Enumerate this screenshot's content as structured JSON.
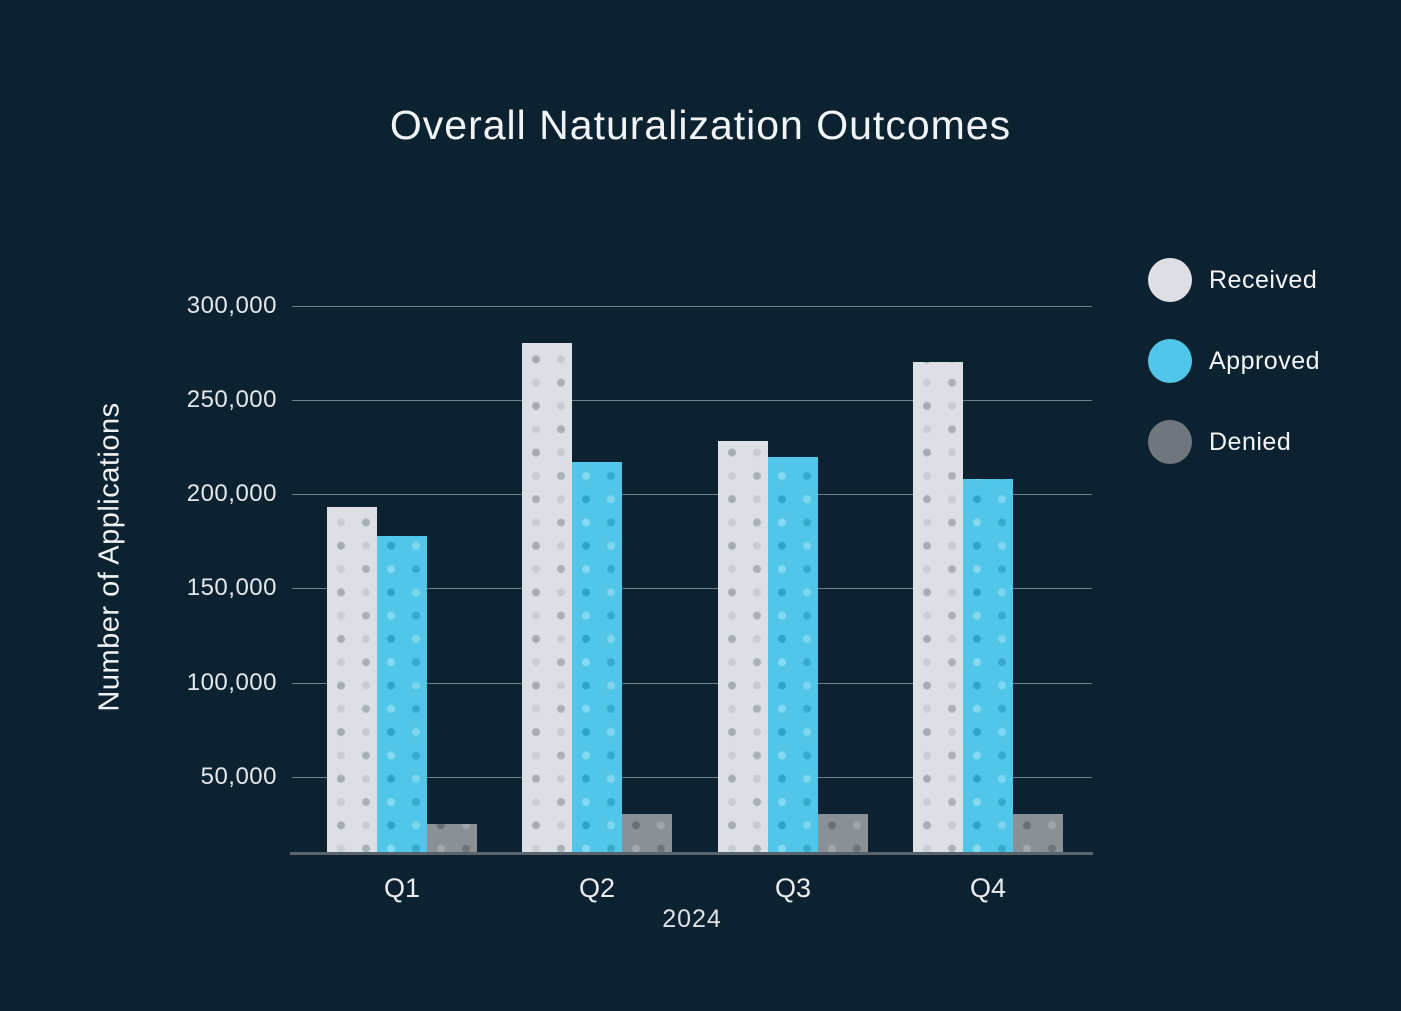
{
  "chart_data": {
    "type": "bar",
    "title": "Overall Naturalization Outcomes",
    "xlabel": "2024",
    "ylabel": "Number of Applications",
    "categories": [
      "Q1",
      "Q2",
      "Q3",
      "Q4"
    ],
    "series": [
      {
        "name": "Received",
        "color": "#dce0e5",
        "legend_color": "#dce0e5",
        "values": [
          193000,
          280000,
          228000,
          270000
        ]
      },
      {
        "name": "Approved",
        "color": "#52c6e8",
        "legend_color": "#52c6e8",
        "values": [
          178000,
          217000,
          220000,
          208000
        ]
      },
      {
        "name": "Denied",
        "color": "#8a9096",
        "legend_color": "#6f767d",
        "values": [
          25000,
          30000,
          30000,
          30000
        ]
      }
    ],
    "yticks": [
      300000,
      250000,
      200000,
      150000,
      100000,
      50000
    ],
    "ylim": [
      0,
      310000
    ],
    "grid": "horizontal",
    "legend_position": "right",
    "colors": {
      "background": "#0d2231",
      "gridline": "#becdd8",
      "axis_line": "#5a646c",
      "text": "#f0f4f6"
    }
  }
}
